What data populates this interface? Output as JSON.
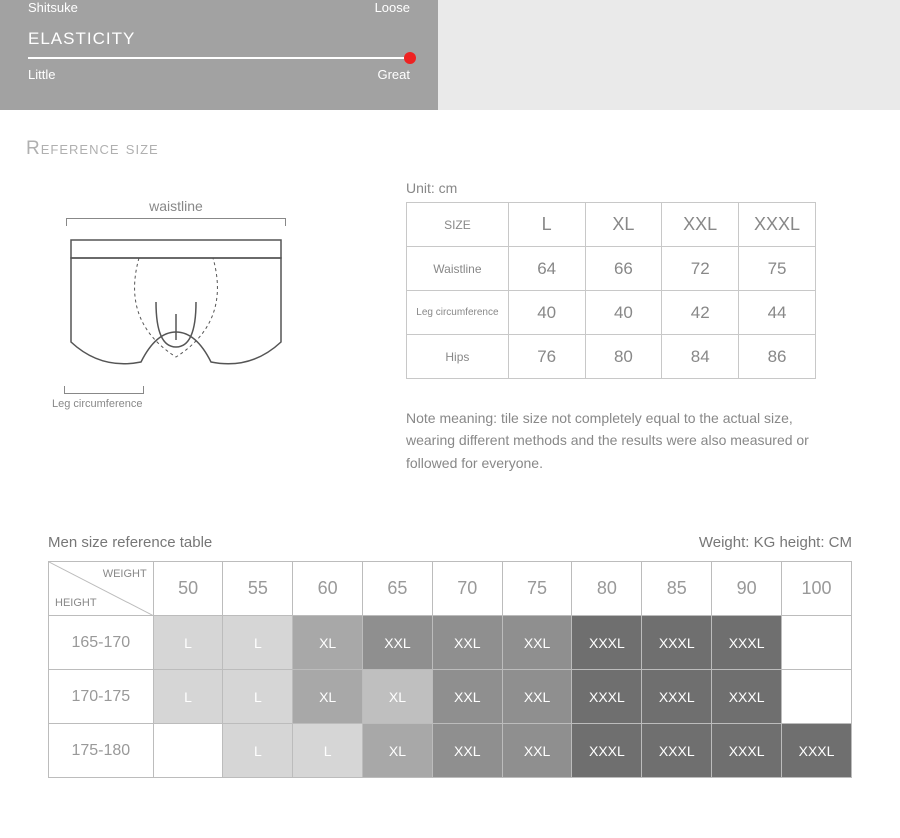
{
  "top": {
    "shitsuke_left": "Shitsuke",
    "shitsuke_right": "Loose",
    "elasticity_title": "ELASTICITY",
    "elasticity_left": "Little",
    "elasticity_right": "Great",
    "knob_color": "#e22",
    "left_bg": "#a2a2a2",
    "right_bg": "#eaeaea"
  },
  "reference_title": "Reference size",
  "diagram": {
    "waistline_label": "waistline",
    "leg_label": "Leg circumference"
  },
  "size_table": {
    "unit_label": "Unit: cm",
    "header": [
      "SIZE",
      "L",
      "XL",
      "XXL",
      "XXXL"
    ],
    "rows": [
      {
        "label": "Waistline",
        "values": [
          "64",
          "66",
          "72",
          "75"
        ]
      },
      {
        "label": "Leg circumference",
        "values": [
          "40",
          "40",
          "42",
          "44"
        ]
      },
      {
        "label": "Hips",
        "values": [
          "76",
          "80",
          "84",
          "86"
        ]
      }
    ],
    "note": "Note meaning: tile size not completely equal to the actual size, wearing different methods and the results were also measured or followed for everyone."
  },
  "ref2": {
    "title": "Men size reference table",
    "unit": "Weight: KG height: CM",
    "diag_weight": "WEIGHT",
    "diag_height": "HEIGHT",
    "weights": [
      "50",
      "55",
      "60",
      "65",
      "70",
      "75",
      "80",
      "85",
      "90",
      "100"
    ],
    "heights": [
      "165-170",
      "170-175",
      "175-180"
    ],
    "shade_classes": {
      "L": "s0",
      "XL": "s2",
      "XXL": "s3",
      "XXXL": "s4"
    },
    "grid": [
      [
        "L",
        "L",
        "XL",
        "XXL",
        "XXL",
        "XXL",
        "XXXL",
        "XXXL",
        "XXXL",
        ""
      ],
      [
        "L",
        "L",
        "XL",
        "XL",
        "XXL",
        "XXL",
        "XXXL",
        "XXXL",
        "XXXL",
        ""
      ],
      [
        "",
        "L",
        "L",
        "XL",
        "XXL",
        "XXL",
        "XXXL",
        "XXXL",
        "XXXL",
        "XXXL"
      ]
    ],
    "override_shade": {
      "1-3": "s1"
    }
  }
}
